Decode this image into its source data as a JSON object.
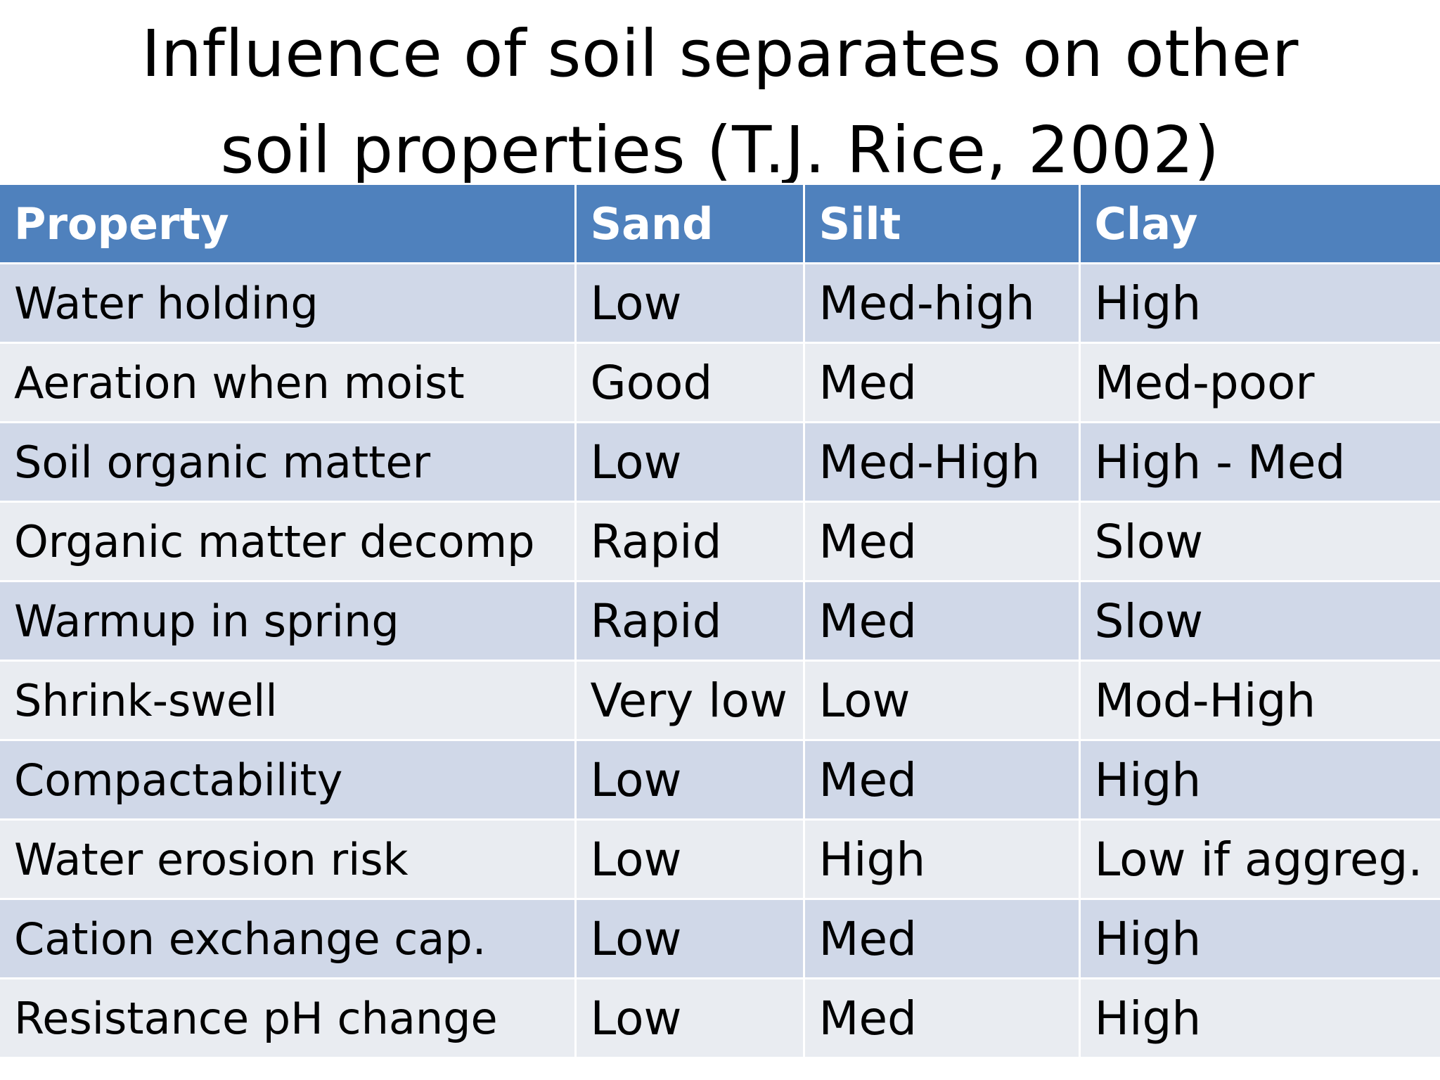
{
  "title": {
    "line1": "Influence of soil separates on other",
    "line2": "soil properties (T.J. Rice, 2002)"
  },
  "table": {
    "headers": [
      "Property",
      "Sand",
      "Silt",
      "Clay"
    ],
    "rows": [
      [
        "Water holding",
        "Low",
        "Med-high",
        "High"
      ],
      [
        "Aeration when moist",
        "Good",
        "Med",
        "Med-poor"
      ],
      [
        "Soil organic matter",
        "Low",
        "Med-High",
        "High - Med"
      ],
      [
        "Organic matter decomp",
        "Rapid",
        "Med",
        "Slow"
      ],
      [
        "Warmup in spring",
        "Rapid",
        "Med",
        "Slow"
      ],
      [
        "Shrink-swell",
        "Very low",
        "Low",
        "Mod-High"
      ],
      [
        "Compactability",
        "Low",
        "Med",
        "High"
      ],
      [
        "Water erosion risk",
        "Low",
        "High",
        "Low if aggreg."
      ],
      [
        "Cation exchange cap.",
        "Low",
        "Med",
        "High"
      ],
      [
        "Resistance pH change",
        "Low",
        "Med",
        "High"
      ]
    ]
  },
  "colors": {
    "header_bg": "#4f81bd",
    "row_odd_bg": "#d0d8e8",
    "row_even_bg": "#e9ecf1"
  }
}
